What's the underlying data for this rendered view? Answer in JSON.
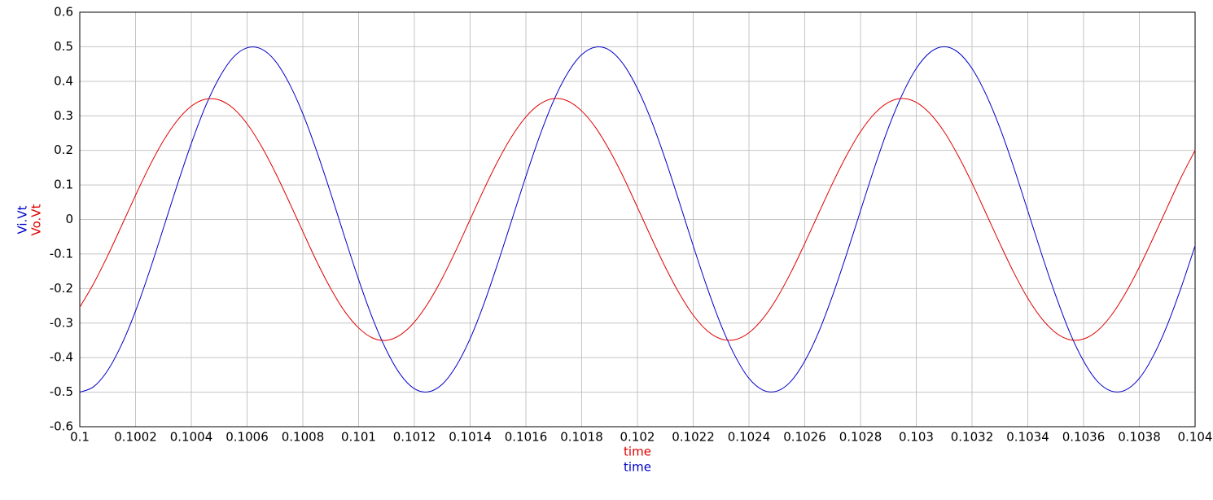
{
  "chart_data": {
    "type": "line",
    "x": [
      0.1,
      0.10005,
      0.1001,
      0.10015,
      0.1002,
      0.10025,
      0.1003,
      0.10035,
      0.1004,
      0.10045,
      0.1005,
      0.10055,
      0.1006,
      0.10065,
      0.1007,
      0.10075,
      0.1008,
      0.10085,
      0.1009,
      0.10095,
      0.101,
      0.10105,
      0.1011,
      0.10115,
      0.1012,
      0.10125,
      0.1013,
      0.10135,
      0.1014,
      0.10145,
      0.1015,
      0.10155,
      0.1016,
      0.10165,
      0.1017,
      0.10175,
      0.1018,
      0.10185,
      0.1019,
      0.10195,
      0.102,
      0.10205,
      0.1021,
      0.10215,
      0.1022,
      0.10225,
      0.1023,
      0.10235,
      0.1024,
      0.10245,
      0.1025,
      0.10255,
      0.1026,
      0.10265,
      0.1027,
      0.10275,
      0.1028,
      0.10285,
      0.1029,
      0.10295,
      0.103,
      0.10305,
      0.1031,
      0.10315,
      0.1032,
      0.10325,
      0.1033,
      0.10335,
      0.1034,
      0.10345,
      0.1035,
      0.10355,
      0.1036,
      0.10365,
      0.1037,
      0.10375,
      0.1038,
      0.10385,
      0.1039,
      0.10395,
      0.104
    ],
    "series": [
      {
        "name": "Vi.Vt",
        "xlabel": "time",
        "color": "#0000c8",
        "values": [
          -0.5,
          -0.484,
          -0.437,
          -0.362,
          -0.265,
          -0.15,
          -0.025,
          0.101,
          0.22,
          0.326,
          0.41,
          0.469,
          0.497,
          0.494,
          0.46,
          0.395,
          0.306,
          0.197,
          0.076,
          -0.051,
          -0.174,
          -0.286,
          -0.379,
          -0.449,
          -0.49,
          -0.499,
          -0.477,
          -0.424,
          -0.345,
          -0.243,
          -0.125,
          0,
          0.125,
          0.243,
          0.345,
          0.424,
          0.477,
          0.499,
          0.49,
          0.449,
          0.379,
          0.286,
          0.174,
          0.051,
          -0.076,
          -0.197,
          -0.306,
          -0.395,
          -0.46,
          -0.494,
          -0.497,
          -0.469,
          -0.41,
          -0.326,
          -0.22,
          -0.101,
          0.025,
          0.15,
          0.265,
          0.362,
          0.437,
          0.484,
          0.5,
          0.484,
          0.437,
          0.362,
          0.265,
          0.15,
          0.025,
          -0.101,
          -0.22,
          -0.326,
          -0.41,
          -0.469,
          -0.497,
          -0.494,
          -0.46,
          -0.395,
          -0.306,
          -0.197,
          -0.076
        ]
      },
      {
        "name": "Vo.Vt",
        "xlabel": "time",
        "color": "#e00000",
        "values": [
          -0.254,
          -0.185,
          -0.105,
          -0.018,
          0.07,
          0.154,
          0.228,
          0.287,
          0.328,
          0.348,
          0.346,
          0.322,
          0.277,
          0.214,
          0.138,
          0.053,
          -0.035,
          -0.122,
          -0.2,
          -0.266,
          -0.314,
          -0.343,
          -0.35,
          -0.334,
          -0.297,
          -0.241,
          -0.17,
          -0.088,
          0,
          0.088,
          0.17,
          0.241,
          0.297,
          0.334,
          0.35,
          0.343,
          0.314,
          0.266,
          0.2,
          0.122,
          0.035,
          -0.053,
          -0.138,
          -0.214,
          -0.277,
          -0.322,
          -0.346,
          -0.348,
          -0.328,
          -0.287,
          -0.228,
          -0.154,
          -0.07,
          0.018,
          0.105,
          0.185,
          0.254,
          0.306,
          0.339,
          0.35,
          0.339,
          0.306,
          0.254,
          0.185,
          0.105,
          0.018,
          -0.07,
          -0.154,
          -0.228,
          -0.287,
          -0.328,
          -0.348,
          -0.346,
          -0.322,
          -0.277,
          -0.214,
          -0.138,
          -0.053,
          0.035,
          0.122,
          0.2
        ]
      }
    ],
    "xlim": [
      0.1,
      0.104
    ],
    "xticks": [
      0.1,
      0.1002,
      0.1004,
      0.1006,
      0.1008,
      0.101,
      0.1012,
      0.1014,
      0.1016,
      0.1018,
      0.102,
      0.1022,
      0.1024,
      0.1026,
      0.1028,
      0.103,
      0.1032,
      0.1034,
      0.1036,
      0.1038,
      0.104
    ],
    "ylim": [
      -0.6,
      0.6
    ],
    "yticks": [
      -0.6,
      -0.5,
      -0.4,
      -0.3,
      -0.2,
      -0.1,
      0,
      0.1,
      0.2,
      0.3,
      0.4,
      0.5,
      0.6
    ],
    "grid": true
  }
}
